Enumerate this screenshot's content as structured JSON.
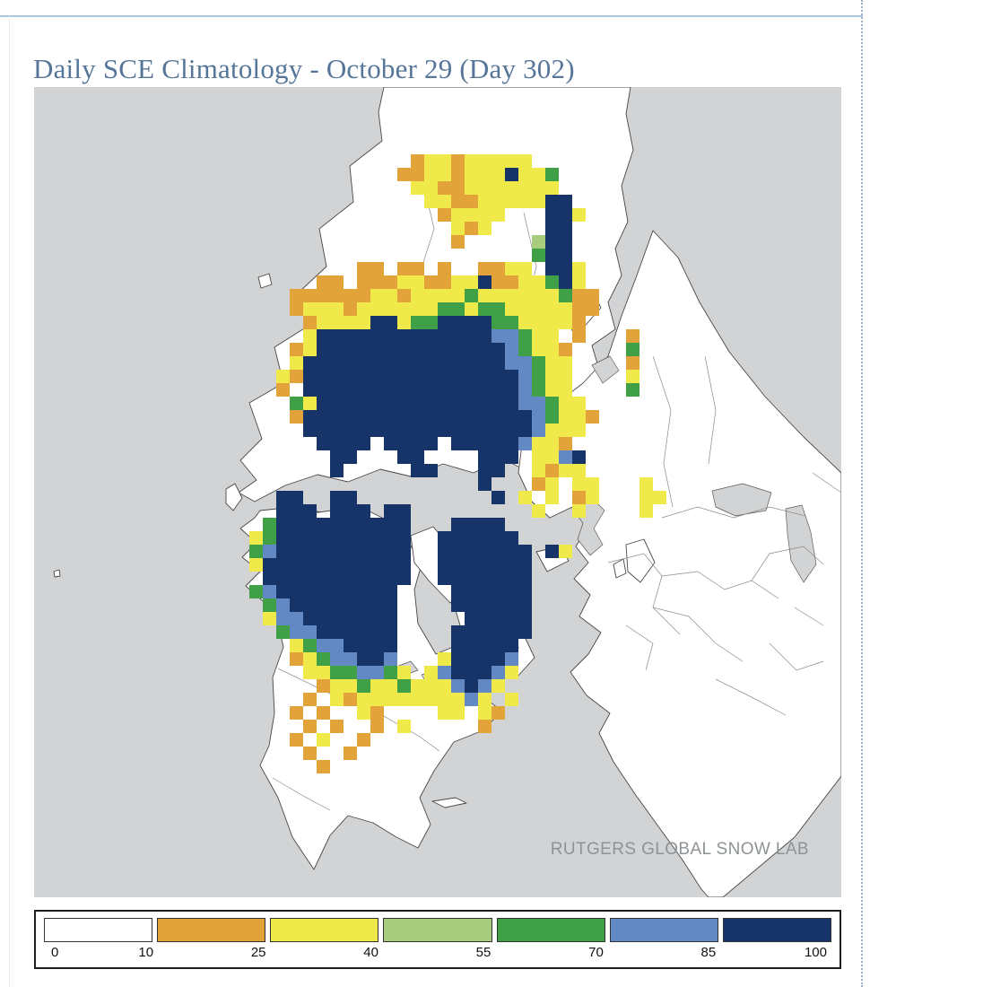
{
  "page": {
    "title": "Daily SCE Climatology - October 29 (Day 302)",
    "watermark": "RUTGERS GLOBAL SNOW LAB"
  },
  "colors": {
    "title_text": "#567699",
    "ocean": "#d2d3d4",
    "land": "#ffffff",
    "top_rule": "#a9c7e1",
    "watermark_text": "#8e9396"
  },
  "legend": {
    "tick_labels": [
      "0",
      "10",
      "25",
      "40",
      "55",
      "70",
      "85",
      "100"
    ],
    "segments": [
      {
        "label": "0-10",
        "color": "#ffffff"
      },
      {
        "label": "10-25",
        "color": "#e2a33b"
      },
      {
        "label": "25-40",
        "color": "#f0e94a"
      },
      {
        "label": "40-55",
        "color": "#a9cd7e"
      },
      {
        "label": "55-70",
        "color": "#3fa047"
      },
      {
        "label": "70-85",
        "color": "#6289c4"
      },
      {
        "label": "85-100",
        "color": "#173468"
      }
    ]
  },
  "chart_data": {
    "type": "heatmap",
    "title": "Daily SCE Climatology - October 29 (Day 302)",
    "date": "October 29",
    "day_of_year": 302,
    "projection": "northern-hemisphere polar stereographic",
    "source_label": "RUTGERS GLOBAL SNOW LAB",
    "legend_breaks": [
      0,
      10,
      25,
      40,
      55,
      70,
      85,
      100
    ],
    "classes": [
      {
        "key": "o",
        "range": "10-25",
        "color": "#e2a33b"
      },
      {
        "key": "y",
        "range": "25-40",
        "color": "#f0e94a"
      },
      {
        "key": "l",
        "range": "40-55",
        "color": "#a9cd7e"
      },
      {
        "key": "g",
        "range": "55-70",
        "color": "#3fa047"
      },
      {
        "key": "b",
        "range": "70-85",
        "color": "#6289c4"
      },
      {
        "key": "n",
        "range": "85-100",
        "color": "#173468"
      }
    ],
    "grid": {
      "cols": 60,
      "rows": 60,
      "cell_size": 15,
      "class_colors": {
        "o": "#e2a33b",
        "y": "#f0e94a",
        "l": "#a9cd7e",
        "g": "#3fa047",
        "b": "#6289c4",
        "n": "#173468"
      },
      "cell_runs": [
        [],
        [],
        [],
        [],
        [],
        [
          [
            28,
            "oyyoyyyyy"
          ]
        ],
        [
          [
            27,
            "ooyyoyyynyyg"
          ]
        ],
        [
          [
            28,
            "yyooyyyyyyy"
          ]
        ],
        [
          [
            29,
            "yyooyyyyynn"
          ]
        ],
        [
          [
            30,
            "oyyyy"
          ],
          [
            38,
            "nny"
          ]
        ],
        [
          [
            31,
            "yoy"
          ],
          [
            38,
            "nn"
          ]
        ],
        [
          [
            31,
            "o"
          ],
          [
            37,
            "lnn"
          ]
        ],
        [
          [
            37,
            "gnn"
          ]
        ],
        [
          [
            24,
            "oo"
          ],
          [
            27,
            "oo"
          ],
          [
            30,
            "o"
          ],
          [
            33,
            "ooyy"
          ],
          [
            38,
            "nny"
          ]
        ],
        [
          [
            21,
            "oo"
          ],
          [
            24,
            "oooyyooyynooyygny"
          ]
        ],
        [
          [
            19,
            "ooooooyyoyyyygyyyyyygoo"
          ]
        ],
        [
          [
            19,
            "oyyyoyyyyyyggyggyyyyyoo"
          ]
        ],
        [
          [
            20,
            "oyyyynnyggnnnnggyyyyo"
          ]
        ],
        [
          [
            20,
            "ynnnnnnnnnnnnnbbgyy"
          ],
          [
            40,
            "o"
          ],
          [
            44,
            "o"
          ]
        ],
        [
          [
            19,
            "oynnnnnnnnnnnnnnbgyyo"
          ],
          [
            44,
            "g"
          ]
        ],
        [
          [
            19,
            "ynnnnnnnnnnnnnnnbbgyy"
          ],
          [
            44,
            "o"
          ]
        ],
        [
          [
            18,
            "yonnnnnnnnnnnnnnnnbgyy"
          ],
          [
            44,
            "y"
          ]
        ],
        [
          [
            18,
            "o"
          ],
          [
            20,
            "nnnnnnnnnnnnnnnnbgyy"
          ],
          [
            44,
            "g"
          ]
        ],
        [
          [
            19,
            "gynnnnnnnnnnnnnnnbbgyy"
          ]
        ],
        [
          [
            19,
            "onnnnnnnnnnnnnnnnnbgyyo"
          ]
        ],
        [
          [
            20,
            "nnnnnnnnnnnnnnnnnbyyy"
          ]
        ],
        [
          [
            21,
            "nnnn"
          ],
          [
            26,
            "nnnn"
          ],
          [
            31,
            "nnnnnbyyo"
          ]
        ],
        [
          [
            22,
            "nn"
          ],
          [
            27,
            "nn"
          ],
          [
            33,
            "nnn"
          ],
          [
            37,
            "yybn"
          ]
        ],
        [
          [
            22,
            "n"
          ],
          [
            28,
            "nn"
          ],
          [
            33,
            "nn"
          ],
          [
            37,
            "yoyy"
          ]
        ],
        [
          [
            33,
            "n"
          ],
          [
            37,
            "oy"
          ],
          [
            40,
            "yy"
          ],
          [
            45,
            "y"
          ]
        ],
        [
          [
            18,
            "nn"
          ],
          [
            22,
            "nn"
          ],
          [
            34,
            "n"
          ],
          [
            36,
            "y"
          ],
          [
            38,
            "y"
          ],
          [
            40,
            "oy"
          ],
          [
            45,
            "yy"
          ]
        ],
        [
          [
            18,
            "nnn"
          ],
          [
            22,
            "nnn"
          ],
          [
            26,
            "nn"
          ],
          [
            37,
            "y"
          ],
          [
            40,
            "y"
          ],
          [
            45,
            "y"
          ]
        ],
        [
          [
            17,
            "gnnnnnnnnnn"
          ],
          [
            31,
            "nnnn"
          ]
        ],
        [
          [
            16,
            "ygnnnnnnnnnn"
          ],
          [
            30,
            "nnnnnn"
          ]
        ],
        [
          [
            16,
            "gbnnnnnnnnnn"
          ],
          [
            30,
            "nnnnnnn"
          ],
          [
            38,
            "ny"
          ]
        ],
        [
          [
            16,
            "ynnnnnnnnnnn"
          ],
          [
            30,
            "nnnnnnn"
          ]
        ],
        [
          [
            17,
            "nnnnnnnnnnn"
          ],
          [
            30,
            "nnnnnnn"
          ]
        ],
        [
          [
            16,
            "gbnnnnnnnnn"
          ],
          [
            31,
            "nnnnnn"
          ]
        ],
        [
          [
            17,
            "gbnnnnnnnn"
          ],
          [
            31,
            "nnnnnn"
          ]
        ],
        [
          [
            17,
            "ybbnnnnnnn"
          ],
          [
            32,
            "nnnnn"
          ]
        ],
        [
          [
            18,
            "gbbnnnnnn"
          ],
          [
            31,
            "nnnnnn"
          ]
        ],
        [
          [
            19,
            "ygbbnnnn"
          ],
          [
            31,
            "nnnnn"
          ]
        ],
        [
          [
            19,
            "oygbbnnb"
          ],
          [
            30,
            "ynnnnb"
          ]
        ],
        [
          [
            20,
            "yyggbbgy"
          ],
          [
            29,
            "ybnnnby"
          ]
        ],
        [
          [
            21,
            "oyygyygyyybnby"
          ]
        ],
        [
          [
            20,
            "o"
          ],
          [
            22,
            "yoyyyyyyyyby"
          ],
          [
            35,
            "y"
          ]
        ],
        [
          [
            19,
            "o"
          ],
          [
            21,
            "o"
          ],
          [
            24,
            "yo"
          ],
          [
            30,
            "yy"
          ],
          [
            33,
            "yo"
          ]
        ],
        [
          [
            20,
            "o"
          ],
          [
            22,
            "o"
          ],
          [
            25,
            "o"
          ],
          [
            27,
            "y"
          ],
          [
            33,
            "o"
          ]
        ],
        [
          [
            19,
            "o"
          ],
          [
            21,
            "y"
          ],
          [
            24,
            "o"
          ]
        ],
        [
          [
            20,
            "o"
          ],
          [
            23,
            "o"
          ]
        ],
        [
          [
            21,
            "o"
          ]
        ],
        [],
        [],
        [],
        [],
        [],
        [],
        [],
        [],
        []
      ]
    }
  }
}
